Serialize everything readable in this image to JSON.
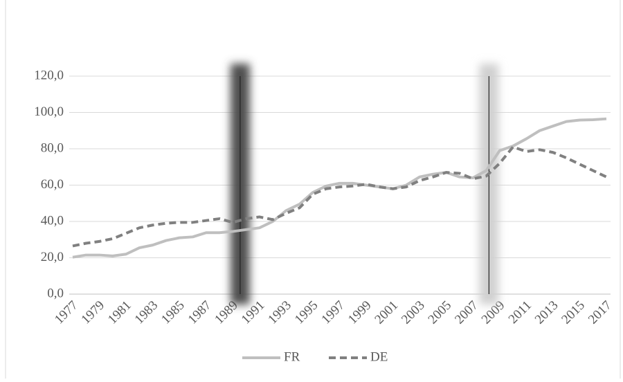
{
  "chart_data": {
    "type": "line",
    "x": [
      1977,
      1978,
      1979,
      1980,
      1981,
      1982,
      1983,
      1984,
      1985,
      1986,
      1987,
      1988,
      1989,
      1990,
      1991,
      1992,
      1993,
      1994,
      1995,
      1996,
      1997,
      1998,
      1999,
      2000,
      2001,
      2002,
      2003,
      2004,
      2005,
      2006,
      2007,
      2008,
      2009,
      2010,
      2011,
      2012,
      2013,
      2014,
      2015,
      2016,
      2017
    ],
    "xlim": [
      1977,
      2017
    ],
    "xticks": [
      1977,
      1979,
      1981,
      1983,
      1985,
      1987,
      1989,
      1991,
      1993,
      1995,
      1997,
      1999,
      2001,
      2003,
      2005,
      2007,
      2009,
      2011,
      2013,
      2015,
      2017
    ],
    "ylim": [
      0,
      120
    ],
    "yticks": [
      {
        "value": 0,
        "label": "0,0"
      },
      {
        "value": 20,
        "label": "20,0"
      },
      {
        "value": 40,
        "label": "40,0"
      },
      {
        "value": 60,
        "label": "60,0"
      },
      {
        "value": 80,
        "label": "80,0"
      },
      {
        "value": 100,
        "label": "100,0"
      },
      {
        "value": 120,
        "label": "120,0"
      }
    ],
    "grid": true,
    "legend": "bottom",
    "series": [
      {
        "name": "FR",
        "color": "#bfbfbf",
        "dash": false,
        "values": [
          20.3,
          21.5,
          21.5,
          21,
          22,
          25.5,
          27,
          29.5,
          31,
          31.5,
          33.8,
          33.8,
          34.5,
          35.5,
          36.5,
          40,
          46,
          49.5,
          56,
          59.5,
          61,
          61,
          60,
          59,
          58,
          60,
          64.5,
          66,
          67,
          64.5,
          64,
          68,
          79,
          81.5,
          85.5,
          90,
          92.5,
          95,
          95.8,
          96,
          96.5
        ]
      },
      {
        "name": "DE",
        "color": "#808080",
        "dash": true,
        "values": [
          26.5,
          28,
          29,
          30.5,
          33.5,
          36.5,
          38,
          39,
          39.5,
          39.5,
          40.5,
          41.5,
          39.5,
          41.5,
          42.5,
          41,
          44.5,
          47.5,
          55,
          58,
          59,
          59.5,
          60.5,
          59,
          58,
          59,
          62.5,
          64.5,
          67,
          66.5,
          63.5,
          65,
          72,
          81,
          78.5,
          79.5,
          78,
          75,
          71.5,
          68,
          64.5
        ]
      }
    ],
    "bands": [
      {
        "x": 1989.55,
        "color": "#505050"
      },
      {
        "x": 2008.2,
        "color": "#d0d0d0"
      }
    ]
  }
}
